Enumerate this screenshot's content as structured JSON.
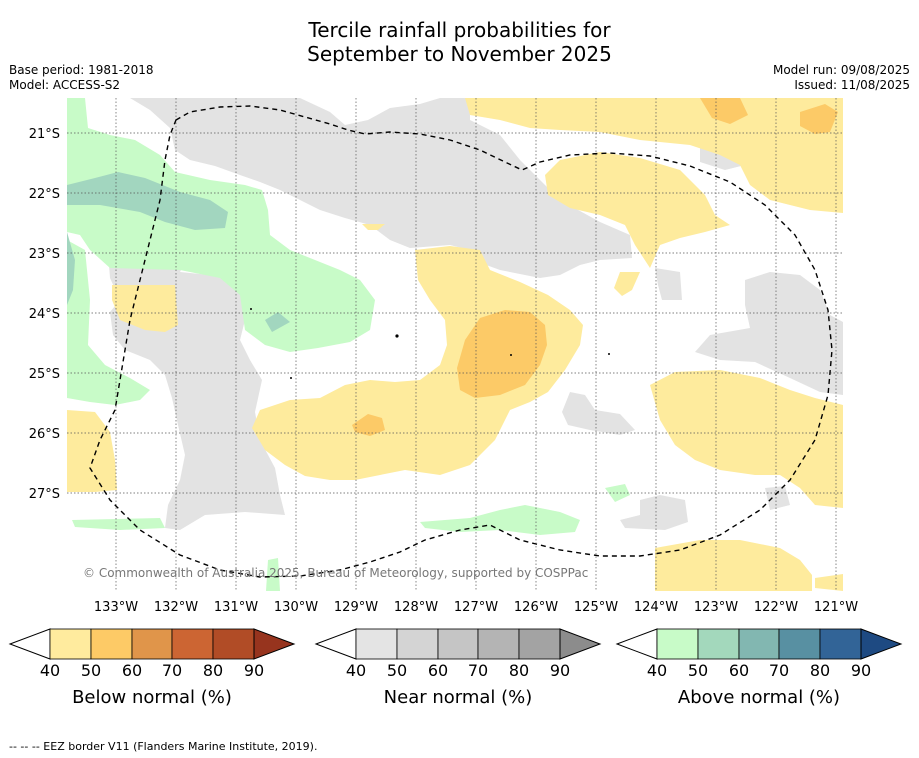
{
  "title": {
    "line1": "Tercile rainfall probabilities for",
    "line2": "September to November 2025"
  },
  "meta": {
    "base_period": "Base period: 1981-2018",
    "model": "Model: ACCESS-S2",
    "model_run": "Model run: 09/08/2025",
    "issued": "Issued: 11/08/2025"
  },
  "map": {
    "lat_labels": [
      "21°S",
      "22°S",
      "23°S",
      "24°S",
      "25°S",
      "26°S",
      "27°S"
    ],
    "lon_labels": [
      "133°W",
      "132°W",
      "131°W",
      "130°W",
      "129°W",
      "128°W",
      "127°W",
      "126°W",
      "125°W",
      "124°W",
      "123°W",
      "122°W",
      "121°W"
    ],
    "copyright": "© Commonwealth of Australia 2025, Bureau of Meteorology, supported by COSPPac",
    "colors": {
      "near_normal": "#e3e3e3",
      "above_normal": "#c8fbc8",
      "above_normal_60": "#a2d6bf",
      "below_normal": "#feeb9d",
      "below_normal_60": "#fcca67"
    }
  },
  "legends": [
    {
      "label": "Below normal (%)",
      "ticks": [
        "40",
        "50",
        "60",
        "70",
        "80",
        "90"
      ],
      "colors": [
        "#ffeb9e",
        "#fdca66",
        "#e0954a",
        "#cc6533",
        "#b14c26",
        "#97341e"
      ]
    },
    {
      "label": "Near normal (%)",
      "ticks": [
        "40",
        "50",
        "60",
        "70",
        "80",
        "90"
      ],
      "colors": [
        "#e4e4e4",
        "#d4d4d4",
        "#c5c5c5",
        "#b4b4b4",
        "#a3a3a3",
        "#8c8c8c"
      ]
    },
    {
      "label": "Above normal (%)",
      "ticks": [
        "40",
        "50",
        "60",
        "70",
        "80",
        "90"
      ],
      "colors": [
        "#c8fbc8",
        "#a3d8bc",
        "#82b7b1",
        "#5890a2",
        "#326497",
        "#1e4a82"
      ]
    }
  ],
  "footer": "--  --  -- EEZ border V11 (Flanders Marine Institute, 2019)."
}
